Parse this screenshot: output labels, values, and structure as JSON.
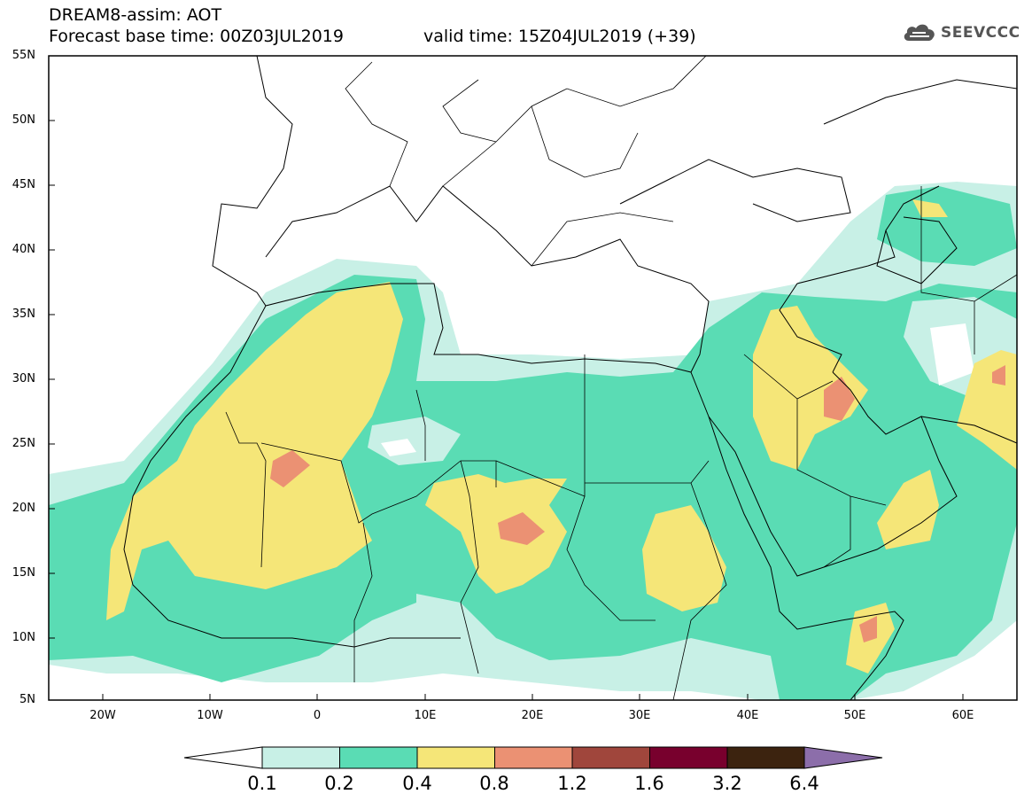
{
  "header": {
    "line1": "DREAM8-assim: AOT",
    "base_time": "Forecast base time: 00Z03JUL2019",
    "valid_time": "valid time: 15Z04JUL2019 (+39)"
  },
  "logo": {
    "text": "SEEVCCC",
    "icon": "cloud-icon"
  },
  "map": {
    "lon_range": [
      -25,
      65
    ],
    "lat_range": [
      5,
      55
    ],
    "lat_labels": [
      "55N",
      "50N",
      "45N",
      "40N",
      "35N",
      "30N",
      "25N",
      "20N",
      "15N",
      "10N",
      "5N"
    ],
    "lon_labels": [
      "20W",
      "10W",
      "0",
      "10E",
      "20E",
      "30E",
      "40E",
      "50E",
      "60E"
    ]
  },
  "colorbar": {
    "levels": [
      "0.1",
      "0.2",
      "0.4",
      "0.8",
      "1.2",
      "1.6",
      "3.2",
      "6.4"
    ],
    "colors": [
      "#ffffff",
      "#c8f0e6",
      "#5adcb4",
      "#f5e678",
      "#eb9173",
      "#a0463c",
      "#78002d",
      "#3c230f",
      "#8c6eaa"
    ]
  }
}
